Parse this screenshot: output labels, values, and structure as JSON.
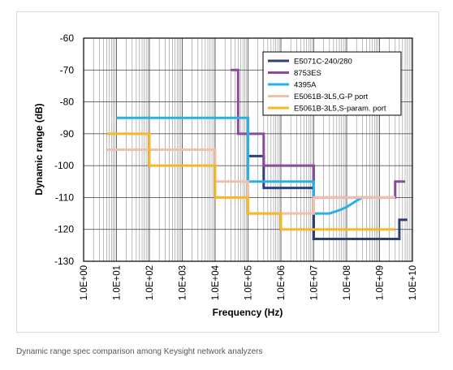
{
  "caption": "Dynamic range spec comparison among Keysight network analyzers",
  "chart_data": {
    "type": "line",
    "xlabel": "Frequency (Hz)",
    "ylabel": "Dynamic range (dB)",
    "x_scale": "log",
    "xlim": [
      1,
      10000000000
    ],
    "ylim": [
      -130,
      -60
    ],
    "grid": true,
    "legend_position": "top-right",
    "x_tick_labels": [
      "1.0E+00",
      "1.0E+01",
      "1.0E+02",
      "1.0E+03",
      "1.0E+04",
      "1.0E+05",
      "1.0E+06",
      "1.0E+07",
      "1.0E+08",
      "1.0E+09",
      "1.0E+10"
    ],
    "y_tick_labels": [
      "-60",
      "-70",
      "-80",
      "-90",
      "-100",
      "-110",
      "-120",
      "-130"
    ],
    "y_ticks": [
      -60,
      -70,
      -80,
      -90,
      -100,
      -110,
      -120,
      -130
    ],
    "series": [
      {
        "name": "E5071C-240/280",
        "color": "#2e3f80",
        "points": [
          [
            100000,
            -97
          ],
          [
            300000,
            -97
          ],
          [
            300000,
            -107
          ],
          [
            10000000,
            -107
          ],
          [
            10000000,
            -123
          ],
          [
            4000000000,
            -123
          ],
          [
            4000000000,
            -117
          ],
          [
            7000000000,
            -117
          ]
        ]
      },
      {
        "name": "8753ES",
        "color": "#8b4a9c",
        "points": [
          [
            30000,
            -70
          ],
          [
            50000,
            -70
          ],
          [
            50000,
            -90
          ],
          [
            300000,
            -90
          ],
          [
            300000,
            -100
          ],
          [
            10000000,
            -100
          ],
          [
            10000000,
            -110
          ],
          [
            3000000000,
            -110
          ],
          [
            3000000000,
            -105
          ],
          [
            6000000000,
            -105
          ]
        ]
      },
      {
        "name": "4395A",
        "color": "#2ab1e4",
        "points": [
          [
            10,
            -85
          ],
          [
            100000,
            -85
          ],
          [
            100000,
            -105
          ],
          [
            10000000,
            -105
          ],
          [
            10000000,
            -115
          ],
          [
            30000000,
            -115
          ],
          [
            60000000,
            -114
          ],
          [
            100000000,
            -113
          ],
          [
            200000000,
            -111
          ],
          [
            300000000,
            -110
          ]
        ]
      },
      {
        "name": "E5061B-3L5,G-P port",
        "color": "#f4bea9",
        "points": [
          [
            5,
            -95
          ],
          [
            10000,
            -95
          ],
          [
            10000,
            -105
          ],
          [
            100000,
            -105
          ],
          [
            100000,
            -115
          ],
          [
            10000000,
            -115
          ],
          [
            10000000,
            -110
          ],
          [
            3000000000,
            -110
          ]
        ]
      },
      {
        "name": "E5061B-3L5,S-param. port",
        "color": "#f6b823",
        "points": [
          [
            5,
            -90
          ],
          [
            100,
            -90
          ],
          [
            100,
            -100
          ],
          [
            10000,
            -100
          ],
          [
            10000,
            -110
          ],
          [
            100000,
            -110
          ],
          [
            100000,
            -115
          ],
          [
            1000000,
            -115
          ],
          [
            1000000,
            -120
          ],
          [
            3000000000,
            -120
          ]
        ]
      }
    ]
  }
}
